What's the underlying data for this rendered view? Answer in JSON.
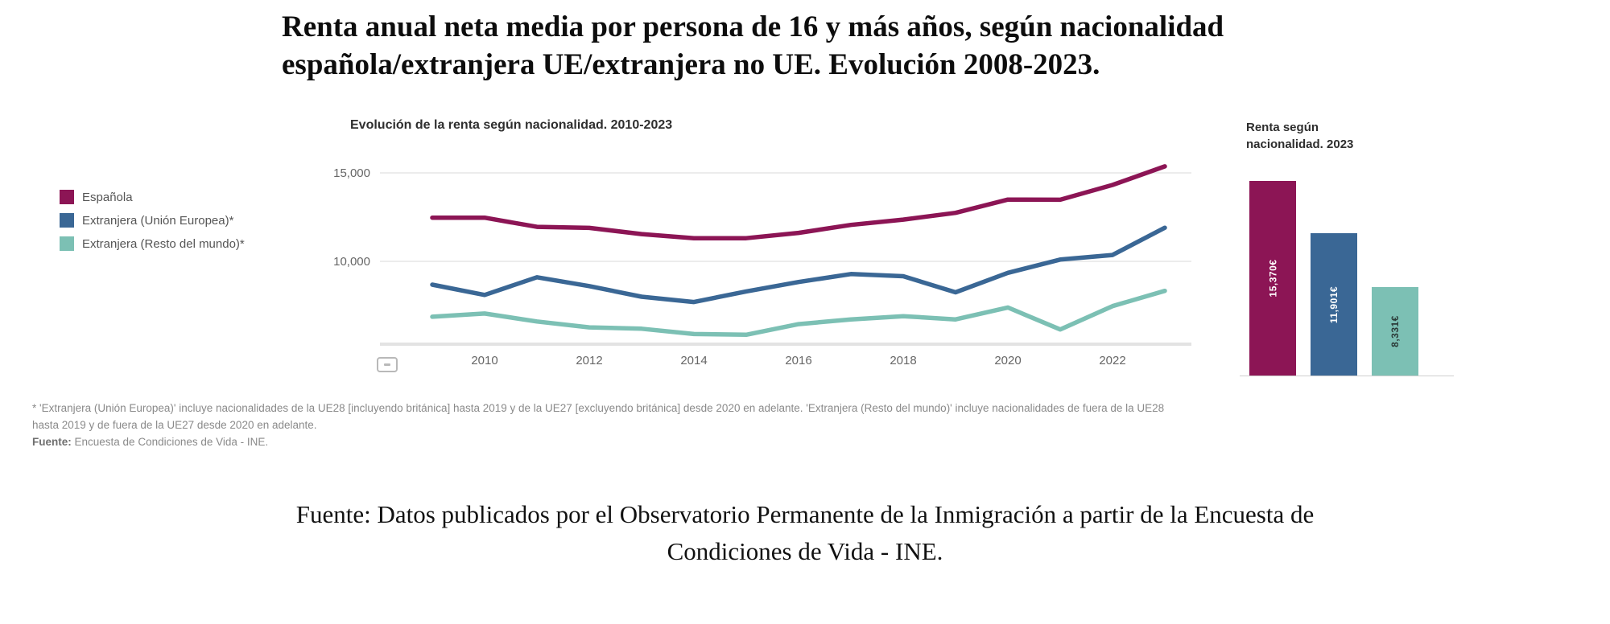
{
  "header": {
    "title_line1": "Renta anual neta media por persona de 16 y más años, según nacionalidad",
    "title_line2": "española/extranjera UE/extranjera no UE. Evolución 2008-2023."
  },
  "footnote": {
    "line1": "* 'Extranjera (Unión Europea)' incluye nacionalidades de la UE28 [incluyendo británica] hasta 2019 y de la UE27 [excluyendo británica] desde 2020 en adelante. 'Extranjera (Resto del mundo)' incluye nacionalidades de fuera de la UE28",
    "line2": "hasta 2019 y de fuera de la UE27 desde 2020 en adelante.",
    "source_label": "Fuente:",
    "source_text": "Encuesta de Condiciones de Vida - INE."
  },
  "caption": {
    "line1": "Fuente: Datos publicados por el Observatorio Permanente de la Inmigración a partir de la Encuesta de",
    "line2": "Condiciones de Vida - INE."
  },
  "chart_data": [
    {
      "type": "line",
      "title": "Evolución de la renta según nacionalidad. 2010-2023",
      "x": [
        2009,
        2010,
        2011,
        2012,
        2013,
        2014,
        2015,
        2016,
        2017,
        2018,
        2019,
        2020,
        2021,
        2022,
        2023
      ],
      "x_tick_labels": [
        "2010",
        "2012",
        "2014",
        "2016",
        "2018",
        "2020",
        "2022"
      ],
      "y_ticks": [
        {
          "label": "15,000",
          "value": 15000
        },
        {
          "label": "10,000",
          "value": 10000
        }
      ],
      "ylim": [
        5300,
        15800
      ],
      "grid": "horizontal",
      "legend_position": "left",
      "series": [
        {
          "name": "Española",
          "color": "#8C1555",
          "values": [
            12470,
            12470,
            11950,
            11890,
            11540,
            11310,
            11310,
            11610,
            12060,
            12360,
            12740,
            13490,
            13480,
            14320,
            15370
          ]
        },
        {
          "name": "Extranjera (Unión Europea)*",
          "color": "#3A6795",
          "values": [
            8680,
            8100,
            9100,
            8600,
            8000,
            7700,
            8300,
            8830,
            9280,
            9160,
            8250,
            9350,
            10100,
            10360,
            11901
          ]
        },
        {
          "name": "Extranjera (Resto del mundo)*",
          "color": "#7CC0B4",
          "values": [
            6870,
            7050,
            6600,
            6270,
            6190,
            5890,
            5850,
            6450,
            6720,
            6900,
            6720,
            7390,
            6150,
            7470,
            8331
          ]
        }
      ]
    },
    {
      "type": "bar",
      "title_line1": "Renta según",
      "title_line2": "nacionalidad. 2023",
      "categories": [
        "Española",
        "Extranjera (Unión Europea)*",
        "Extranjera (Resto del mundo)*"
      ],
      "values": [
        15370,
        11901,
        8331
      ],
      "labels": [
        "15,370€",
        "11,901€",
        "8,331€"
      ],
      "colors": [
        "#8C1555",
        "#3A6795",
        "#7CC0B4"
      ],
      "label_colors": [
        "#ffffff",
        "#ffffff",
        "#2b3a38"
      ]
    }
  ]
}
